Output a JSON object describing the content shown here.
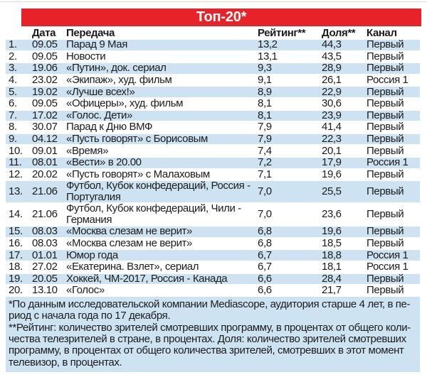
{
  "title": "Топ-20*",
  "colors": {
    "accent_red": "#e72329",
    "stripe_blue": "#cee3f2",
    "title_text": "#ffffff",
    "body_text": "#1b1b1b"
  },
  "columns": {
    "num": "",
    "date": "Дата",
    "program": "Передача",
    "rating": "Рейтинг**",
    "share": "Доля**",
    "channel": "Канал"
  },
  "rows": [
    {
      "num": "1.",
      "date": "09.05",
      "program": "Парад 9 Мая",
      "rating": "13,2",
      "share": "44,3",
      "channel": "Первый"
    },
    {
      "num": "2.",
      "date": "09.05",
      "program": "Новости",
      "rating": "13,1",
      "share": "43,5",
      "channel": "Первый"
    },
    {
      "num": "3.",
      "date": "19.06",
      "program": "«Путин», док. сериал",
      "rating": "9,3",
      "share": "28,9",
      "channel": "Первый"
    },
    {
      "num": "4.",
      "date": "23.02",
      "program": "«Экипаж», худ. фильм",
      "rating": "9,1",
      "share": "26,1",
      "channel": "Россия 1"
    },
    {
      "num": "5.",
      "date": "19.02",
      "program": "«Лучше всех!»",
      "rating": "8,9",
      "share": "22,9",
      "channel": "Первый"
    },
    {
      "num": "6.",
      "date": "09.05",
      "program": "«Офицеры», худ. фильм",
      "rating": "8,1",
      "share": "30,6",
      "channel": "Первый"
    },
    {
      "num": "7.",
      "date": "17.02",
      "program": "«Голос. Дети»",
      "rating": "8,1",
      "share": "23,9",
      "channel": "Первый"
    },
    {
      "num": "8.",
      "date": "30.07",
      "program": "Парад к Дню ВМФ",
      "rating": "7,9",
      "share": "41,4",
      "channel": "Первый"
    },
    {
      "num": "9.",
      "date": "04.12",
      "program": "«Пусть говорят» с Борисовым",
      "rating": "7,9",
      "share": "22,3",
      "channel": "Первый"
    },
    {
      "num": "10.",
      "date": "09.01",
      "program": "«Время»",
      "rating": "7,4",
      "share": "20,1",
      "channel": "Первый"
    },
    {
      "num": "11.",
      "date": "08.01",
      "program": "«Вести» в 20.00",
      "rating": "7,2",
      "share": "17,9",
      "channel": "Россия 1"
    },
    {
      "num": "12.",
      "date": "20.02",
      "program": "«Пусть говорят» с Малаховым",
      "rating": "7,1",
      "share": "19,6",
      "channel": "Первый"
    },
    {
      "num": "13.",
      "date": "21.06",
      "program": "Футбол, Кубок конфедераций, Россия - Португалия",
      "rating": "7,0",
      "share": "25,5",
      "channel": "Первый"
    },
    {
      "num": "14.",
      "date": "21.06",
      "program": "Футбол, Кубок конфедераций, Чили - Германия",
      "rating": "7,0",
      "share": "23,6",
      "channel": "Первый"
    },
    {
      "num": "15.",
      "date": "08.03",
      "program": "«Москва слезам не верит»",
      "rating": "6,8",
      "share": "19,6",
      "channel": "Первый"
    },
    {
      "num": "16.",
      "date": "08.03",
      "program": "«Москва слезам не верит»",
      "rating": "6,8",
      "share": "18,5",
      "channel": "Первый"
    },
    {
      "num": "17.",
      "date": "01.01",
      "program": "Юмор года",
      "rating": "6,7",
      "share": "18,8",
      "channel": "Россия 1"
    },
    {
      "num": "18.",
      "date": "27.02",
      "program": "«Екатерина. Взлет», сериал",
      "rating": "6,7",
      "share": "18,1",
      "channel": "Россия 1"
    },
    {
      "num": "19.",
      "date": "20.05",
      "program": "Хоккей, ЧМ-2017, Россия - Канада",
      "rating": "6,6",
      "share": "28,4",
      "channel": "Первый"
    },
    {
      "num": "20.",
      "date": "13.10",
      "program": "«Голос»",
      "rating": "6,6",
      "share": "21,7",
      "channel": "Первый"
    }
  ],
  "footnotes": {
    "lines": [
      "*По данным исследовательской компании Mediascope, аудитория старше 4 лет, в пе-",
      "риод с начала года по 17 декабря.",
      "**Рейтинг: количество зрителей смотревших программу, в процентах от общего коли-",
      "чества телезрителей в стране, в процентах. Доля: количество зрителей смотревших",
      "программу, в процентах от общего количества зрителей, смотревших в этот момент",
      "телевизор, в процентах."
    ]
  }
}
